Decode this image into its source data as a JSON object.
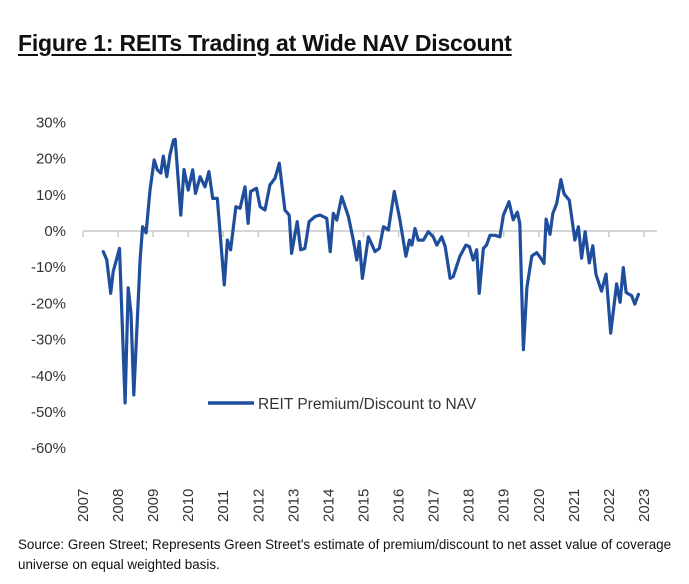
{
  "title": "Figure 1: REITs Trading at Wide NAV Discount",
  "footnote": "Source: Green Street; Represents Green Street's estimate of premium/discount to net asset value of coverage universe on equal weighted basis.",
  "chart_data": {
    "type": "line",
    "title": "Figure 1: REITs Trading at Wide NAV Discount",
    "xlabel": "",
    "ylabel": "",
    "xlim": [
      2007,
      2023
    ],
    "ylim": [
      -60,
      30
    ],
    "x_ticks": [
      "2007",
      "2008",
      "2009",
      "2010",
      "2011",
      "2012",
      "2013",
      "2014",
      "2015",
      "2016",
      "2017",
      "2018",
      "2019",
      "2020",
      "2021",
      "2022",
      "2023"
    ],
    "y_ticks": [
      "30%",
      "20%",
      "10%",
      "0%",
      "-10%",
      "-20%",
      "-30%",
      "-40%",
      "-50%",
      "-60%"
    ],
    "y_tick_values": [
      30,
      20,
      10,
      0,
      -10,
      -20,
      -30,
      -40,
      -50,
      -60
    ],
    "grid": false,
    "legend_position": "bottom-center",
    "line_color": "#1f4e9c",
    "series": [
      {
        "name": "REIT Premium/Discount to NAV",
        "x": [
          2007.58,
          2007.68,
          2007.79,
          2007.86,
          2008.04,
          2008.2,
          2008.29,
          2008.37,
          2008.45,
          2008.63,
          2008.7,
          2008.8,
          2008.91,
          2009.03,
          2009.12,
          2009.22,
          2009.29,
          2009.39,
          2009.48,
          2009.58,
          2009.63,
          2009.79,
          2009.88,
          2010.0,
          2010.13,
          2010.21,
          2010.34,
          2010.48,
          2010.59,
          2010.7,
          2010.83,
          2011.03,
          2011.12,
          2011.21,
          2011.36,
          2011.48,
          2011.62,
          2011.71,
          2011.78,
          2011.95,
          2012.05,
          2012.19,
          2012.33,
          2012.48,
          2012.6,
          2012.76,
          2012.88,
          2012.95,
          2013.11,
          2013.21,
          2013.33,
          2013.45,
          2013.62,
          2013.76,
          2013.95,
          2014.05,
          2014.14,
          2014.24,
          2014.38,
          2014.57,
          2014.71,
          2014.81,
          2014.88,
          2014.97,
          2015.14,
          2015.33,
          2015.45,
          2015.57,
          2015.71,
          2015.88,
          2016.04,
          2016.21,
          2016.31,
          2016.38,
          2016.47,
          2016.56,
          2016.71,
          2016.85,
          2016.99,
          2017.09,
          2017.23,
          2017.33,
          2017.47,
          2017.56,
          2017.75,
          2017.92,
          2018.02,
          2018.13,
          2018.23,
          2018.3,
          2018.42,
          2018.51,
          2018.61,
          2018.75,
          2018.89,
          2018.99,
          2019.15,
          2019.27,
          2019.39,
          2019.46,
          2019.56,
          2019.66,
          2019.8,
          2019.94,
          2020.03,
          2020.15,
          2020.21,
          2020.32,
          2020.4,
          2020.51,
          2020.63,
          2020.72,
          2020.87,
          2021.03,
          2021.13,
          2021.22,
          2021.32,
          2021.44,
          2021.54,
          2021.63,
          2021.79,
          2021.92,
          2022.05,
          2022.22,
          2022.32,
          2022.41,
          2022.49,
          2022.65,
          2022.74,
          2022.84
        ],
        "values": [
          -5.7,
          -8,
          -17.2,
          -11.2,
          -4.8,
          -47.5,
          -15.7,
          -22.7,
          -45.3,
          -8,
          1.2,
          -0.5,
          11.3,
          19.6,
          16.9,
          16,
          20.7,
          15,
          21,
          25.1,
          25.3,
          4.4,
          17,
          11.3,
          16.9,
          10.4,
          15,
          12.2,
          16.4,
          9,
          9,
          -14.9,
          -2.5,
          -5.2,
          6.7,
          6.3,
          12.2,
          2.1,
          10.9,
          11.8,
          6.7,
          5.8,
          12.7,
          14.6,
          18.7,
          5.8,
          4.4,
          -6.2,
          2.6,
          -5.2,
          -4.8,
          2.6,
          4,
          4.4,
          3.5,
          -5.7,
          4.9,
          3,
          9.5,
          4,
          -2.5,
          -8,
          -2.9,
          -13.1,
          -1.6,
          -5.7,
          -4.8,
          1.2,
          0.3,
          10.9,
          3.1,
          -7,
          -2.5,
          -3.9,
          0.7,
          -2.5,
          -2.5,
          -0.2,
          -1.6,
          -3.9,
          -1.6,
          -4.3,
          -13.1,
          -12.6,
          -7,
          -3.9,
          -4.3,
          -8,
          -5.2,
          -17.2,
          -4.8,
          -3.9,
          -1.2,
          -1.2,
          -1.6,
          4.4,
          8.1,
          3.1,
          5.2,
          2.1,
          -32.8,
          -15.6,
          -6.9,
          -6,
          -7.1,
          -9,
          3.3,
          -0.9,
          4.8,
          7.6,
          14.2,
          10.3,
          8.5,
          -2.5,
          1.2,
          -7.5,
          -0.2,
          -8.8,
          -4.1,
          -11.9,
          -16.6,
          -11.9,
          -28.2,
          -14.6,
          -19.7,
          -10.1,
          -17,
          -17.9,
          -20.2,
          -17.5
        ]
      }
    ]
  }
}
